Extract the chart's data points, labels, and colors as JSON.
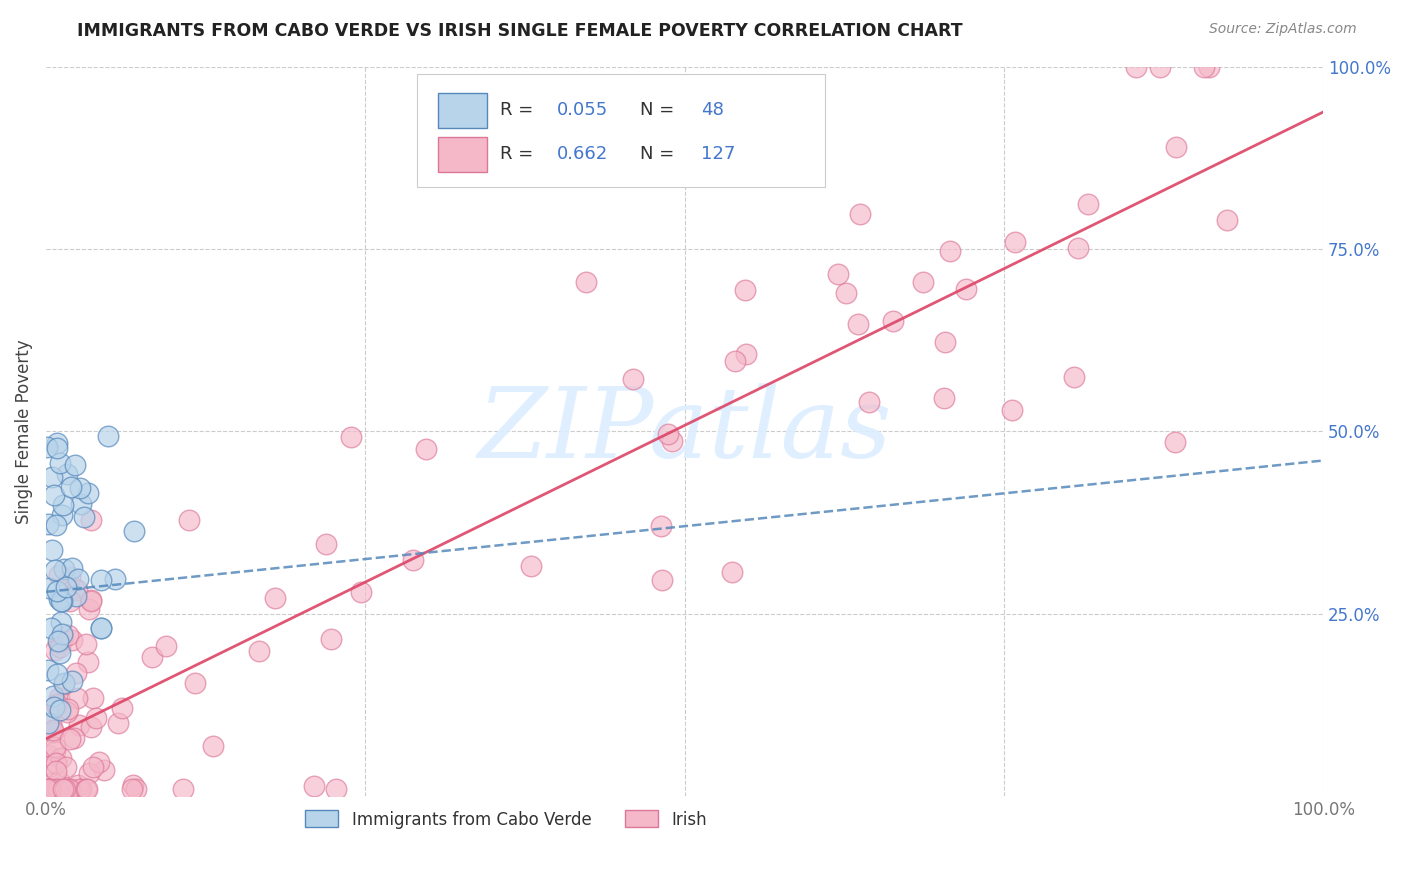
{
  "title": "IMMIGRANTS FROM CABO VERDE VS IRISH SINGLE FEMALE POVERTY CORRELATION CHART",
  "source": "Source: ZipAtlas.com",
  "ylabel": "Single Female Poverty",
  "legend_label1": "Immigrants from Cabo Verde",
  "legend_label2": "Irish",
  "R1": "0.055",
  "N1": "48",
  "R2": "0.662",
  "N2": "127",
  "color_blue_fill": "#b8d4ea",
  "color_blue_edge": "#5588bb",
  "color_pink_fill": "#f4b8c8",
  "color_pink_edge": "#dd7799",
  "color_blue_line": "#5588bb",
  "color_pink_line": "#dd4466",
  "color_blue_text": "#4477cc",
  "background": "#ffffff",
  "watermark_color": "#ddeeff",
  "grid_color": "#cccccc",
  "title_color": "#222222",
  "source_color": "#888888",
  "ylabel_color": "#444444",
  "tick_color": "#777777"
}
